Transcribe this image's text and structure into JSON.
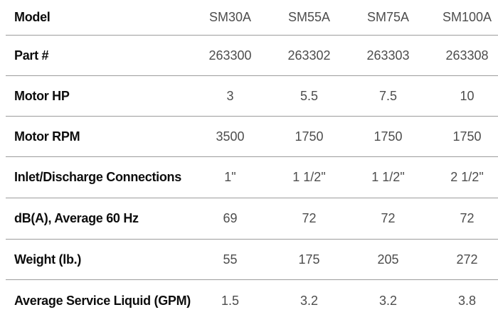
{
  "spec_table": {
    "colors": {
      "label_text": "#0d0d0d",
      "value_text": "#4d4d4d",
      "divider": "#9c9c9c",
      "background": "#ffffff"
    },
    "rows": [
      {
        "label": "Model",
        "values": [
          "SM30A",
          "SM55A",
          "SM75A",
          "SM100A"
        ]
      },
      {
        "label": "Part #",
        "values": [
          "263300",
          "263302",
          "263303",
          "263308"
        ]
      },
      {
        "label": "Motor HP",
        "values": [
          "3",
          "5.5",
          "7.5",
          "10"
        ]
      },
      {
        "label": "Motor RPM",
        "values": [
          "3500",
          "1750",
          "1750",
          "1750"
        ]
      },
      {
        "label": "Inlet/Discharge Connections",
        "values": [
          "1\"",
          "1 1/2\"",
          "1 1/2\"",
          "2 1/2\""
        ]
      },
      {
        "label": "dB(A), Average 60 Hz",
        "values": [
          "69",
          "72",
          "72",
          "72"
        ]
      },
      {
        "label": "Weight (lb.)",
        "values": [
          "55",
          "175",
          "205",
          "272"
        ]
      },
      {
        "label": "Average Service Liquid (GPM)",
        "values": [
          "1.5",
          "3.2",
          "3.2",
          "3.8"
        ]
      }
    ]
  }
}
